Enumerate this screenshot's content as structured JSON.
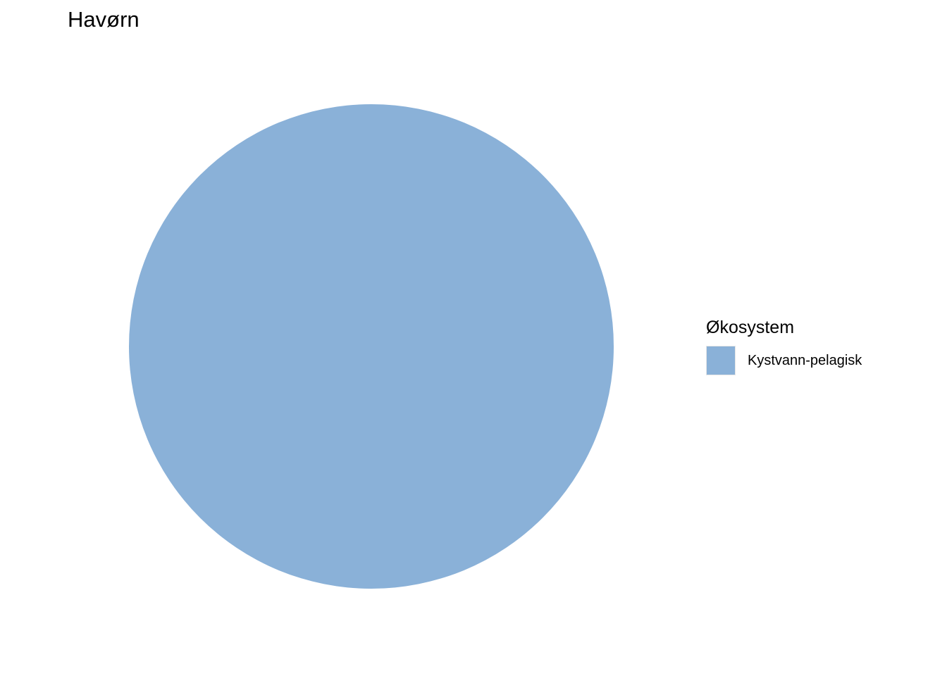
{
  "chart_data": {
    "type": "pie",
    "title": "Havørn",
    "legend": {
      "title": "Økosystem",
      "placement": "right"
    },
    "slices": [
      {
        "label": "Kystvann-pelagisk",
        "value": 100,
        "color": "#8AB1D8"
      }
    ]
  }
}
